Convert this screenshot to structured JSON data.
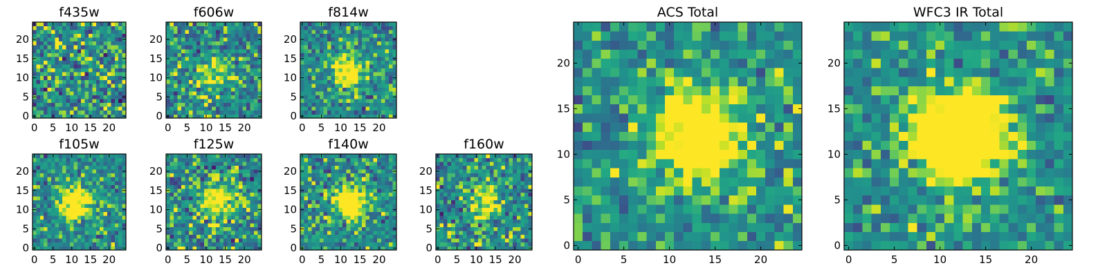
{
  "figure": {
    "background": "#ffffff",
    "colormap": "viridis",
    "panel_titles": [
      "f435w",
      "f606w",
      "f814w",
      "f105w",
      "f125w",
      "f140w",
      "f160w",
      "ACS Total",
      "WFC3 IR Total"
    ]
  },
  "chart_data": [
    {
      "type": "heatmap",
      "title": "f435w",
      "grid": [
        25,
        25
      ],
      "xlim": [
        0,
        24
      ],
      "ylim": [
        0,
        24
      ],
      "xticks": [
        0,
        5,
        10,
        15,
        20
      ],
      "yticks": [
        0,
        5,
        10,
        15,
        20
      ],
      "seed": 11,
      "source": [
        12,
        8
      ],
      "amplitude": 0.05,
      "width": 3,
      "noise": 0.75,
      "contrast": 1.7
    },
    {
      "type": "heatmap",
      "title": "f606w",
      "grid": [
        25,
        25
      ],
      "xlim": [
        0,
        24
      ],
      "ylim": [
        0,
        24
      ],
      "xticks": [
        0,
        5,
        10,
        15,
        20
      ],
      "yticks": [
        0,
        5,
        10,
        15,
        20
      ],
      "seed": 23,
      "source": [
        12,
        11
      ],
      "amplitude": 0.35,
      "width": 3,
      "noise": 0.75,
      "contrast": 1.5
    },
    {
      "type": "heatmap",
      "title": "f814w",
      "grid": [
        25,
        25
      ],
      "xlim": [
        0,
        24
      ],
      "ylim": [
        0,
        24
      ],
      "xticks": [
        0,
        5,
        10,
        15,
        20
      ],
      "yticks": [
        0,
        5,
        10,
        15,
        20
      ],
      "seed": 37,
      "source": [
        12,
        12
      ],
      "amplitude": 0.6,
      "width": 3,
      "noise": 0.7,
      "contrast": 1.4
    },
    {
      "type": "heatmap",
      "title": "f105w",
      "grid": [
        25,
        25
      ],
      "xlim": [
        0,
        24
      ],
      "ylim": [
        0,
        24
      ],
      "xticks": [
        0,
        5,
        10,
        15,
        20
      ],
      "yticks": [
        0,
        5,
        10,
        15,
        20
      ],
      "seed": 41,
      "source": [
        11,
        12
      ],
      "amplitude": 0.75,
      "width": 3,
      "noise": 0.7,
      "contrast": 1.4
    },
    {
      "type": "heatmap",
      "title": "f125w",
      "grid": [
        25,
        25
      ],
      "xlim": [
        0,
        24
      ],
      "ylim": [
        0,
        24
      ],
      "xticks": [
        0,
        5,
        10,
        15,
        20
      ],
      "yticks": [
        0,
        5,
        10,
        15,
        20
      ],
      "seed": 53,
      "source": [
        13,
        12
      ],
      "amplitude": 0.55,
      "width": 3,
      "noise": 0.75,
      "contrast": 1.5
    },
    {
      "type": "heatmap",
      "title": "f140w",
      "grid": [
        25,
        25
      ],
      "xlim": [
        0,
        24
      ],
      "ylim": [
        0,
        24
      ],
      "xticks": [
        0,
        5,
        10,
        15,
        20
      ],
      "yticks": [
        0,
        5,
        10,
        15,
        20
      ],
      "seed": 61,
      "source": [
        13,
        12
      ],
      "amplitude": 0.75,
      "width": 3,
      "noise": 0.7,
      "contrast": 1.4
    },
    {
      "type": "heatmap",
      "title": "f160w",
      "grid": [
        25,
        25
      ],
      "xlim": [
        0,
        24
      ],
      "ylim": [
        0,
        24
      ],
      "xticks": [
        0,
        5,
        10,
        15,
        20
      ],
      "yticks": [
        0,
        5,
        10,
        15,
        20
      ],
      "seed": 71,
      "source": [
        12,
        12
      ],
      "amplitude": 0.5,
      "width": 3,
      "noise": 0.75,
      "contrast": 1.5
    },
    {
      "type": "heatmap",
      "title": "ACS Total",
      "grid": [
        25,
        25
      ],
      "xlim": [
        0,
        24
      ],
      "ylim": [
        0,
        24
      ],
      "xticks": [
        0,
        5,
        10,
        15,
        20
      ],
      "yticks": [
        0,
        5,
        10,
        15,
        20
      ],
      "seed": 83,
      "source": [
        13,
        12
      ],
      "amplitude": 0.7,
      "width": 3.5,
      "noise": 0.55,
      "contrast": 1.6
    },
    {
      "type": "heatmap",
      "title": "WFC3 IR Total",
      "grid": [
        25,
        25
      ],
      "xlim": [
        0,
        24
      ],
      "ylim": [
        0,
        24
      ],
      "xticks": [
        0,
        5,
        10,
        15,
        20
      ],
      "yticks": [
        0,
        5,
        10,
        15,
        20
      ],
      "seed": 97,
      "source": [
        12,
        12
      ],
      "amplitude": 0.9,
      "width": 3.5,
      "noise": 0.5,
      "contrast": 1.7
    }
  ]
}
